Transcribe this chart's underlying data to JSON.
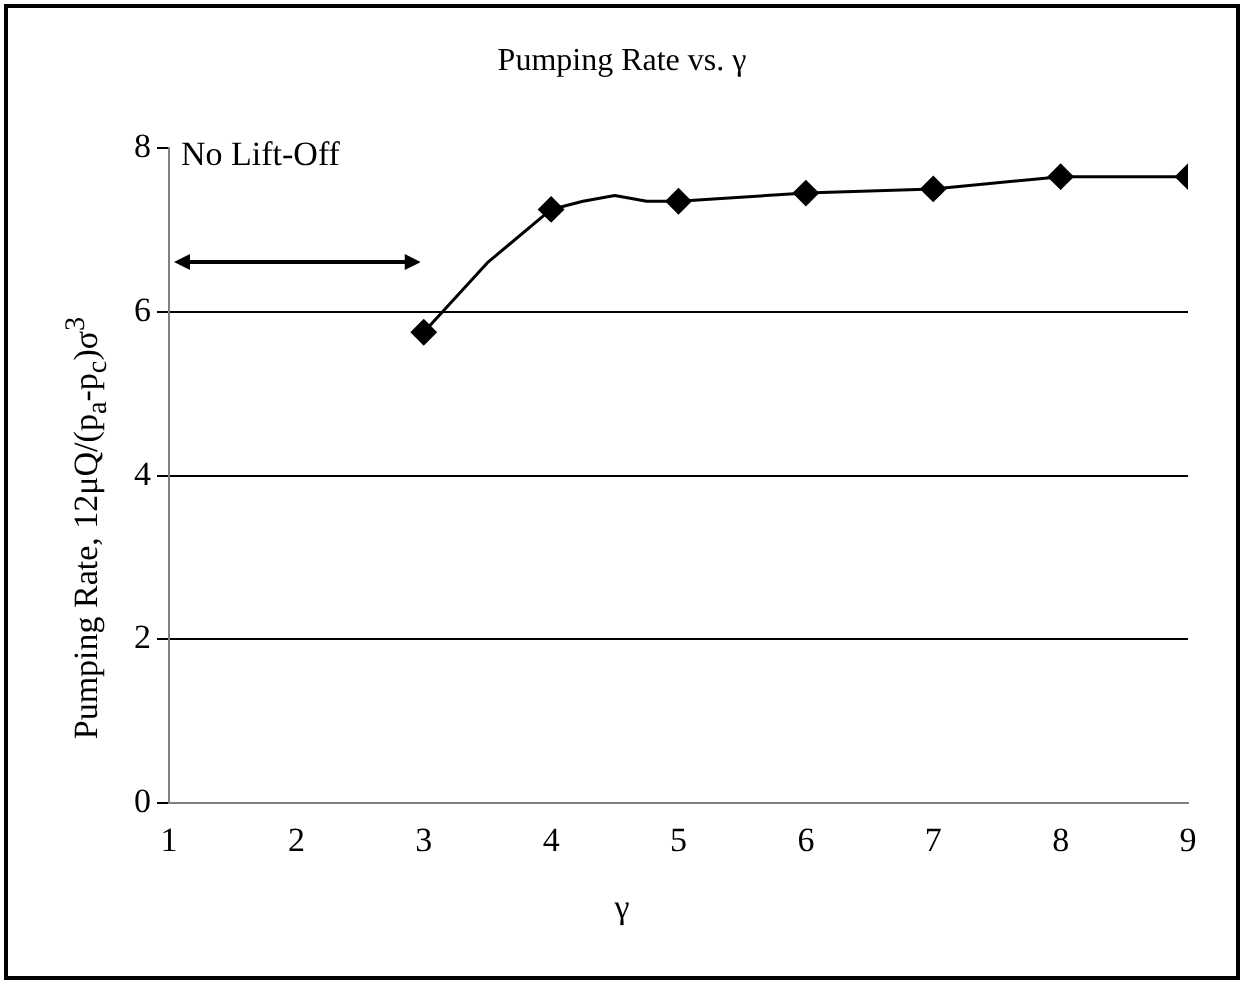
{
  "chart_data": {
    "type": "line",
    "title": "Pumping Rate vs. γ",
    "xlabel": "γ",
    "ylabel": "Pumping Rate, 12μQ/(p$_{a}$-p$_{c}$)σ$^{3}$",
    "series": [
      {
        "type": "line",
        "color": "#000000",
        "marker": "none",
        "x": [
          3,
          3.5,
          4,
          4.25,
          4.5,
          4.75,
          5,
          6,
          7,
          8,
          9
        ],
        "values": [
          5.75,
          6.6,
          7.25,
          7.35,
          7.42,
          7.35,
          7.35,
          7.45,
          7.5,
          7.65,
          7.65
        ]
      },
      {
        "type": "scatter",
        "color": "#000000",
        "marker": "diamond",
        "x": [
          3,
          4,
          5,
          6,
          7,
          8,
          9
        ],
        "values": [
          5.75,
          7.25,
          7.35,
          7.45,
          7.5,
          7.65,
          7.65
        ]
      }
    ],
    "xlim": [
      1,
      9
    ],
    "xticks": [
      1,
      2,
      3,
      4,
      5,
      6,
      7,
      8,
      9
    ],
    "ylim": [
      0,
      8
    ],
    "yticks": [
      0,
      2,
      4,
      6,
      8
    ],
    "grid": "y",
    "legend": false,
    "annotations": [
      "No Lift-Off"
    ]
  }
}
